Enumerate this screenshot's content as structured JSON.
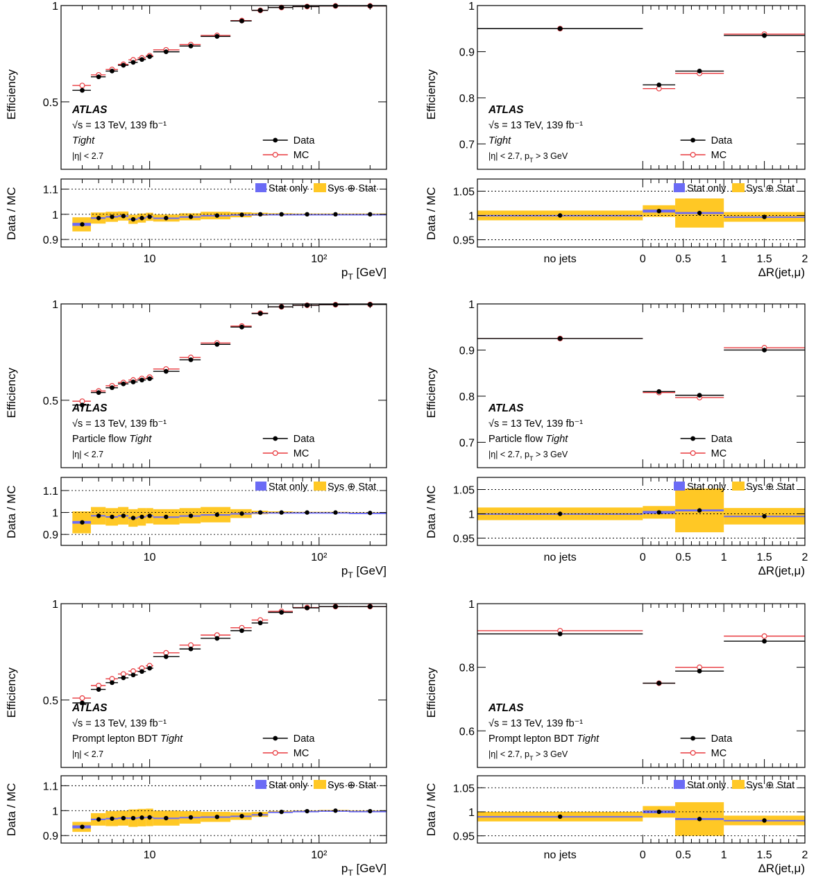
{
  "colors": {
    "data": "#000000",
    "mc": "#e8383d",
    "stat": "#6b6bf5",
    "sys": "#ffc825"
  },
  "labels": {
    "efficiency": "Efficiency",
    "ratio": "Data / MC",
    "pt_axis": "p_T [GeV]",
    "dr_axis": "ΔR(jet,μ)",
    "no_jets": "no jets",
    "atlas": "ATLAS",
    "energy": "√s = 13 TeV, 139 fb⁻¹",
    "legend_data": "Data",
    "legend_mc": "MC",
    "legend_stat": "Stat only",
    "legend_sys": "Sys ⊕ Stat"
  },
  "chart_data": [
    {
      "type": "line",
      "x_variable": "pT",
      "x_scale": "log",
      "xlim": [
        3,
        250
      ],
      "x_ticks": [
        "10",
        "10²"
      ],
      "wp_prefix": "",
      "wp_name": "Tight",
      "selection": "|η| < 2.7",
      "ylim": [
        0.15,
        1.0
      ],
      "y_ticks": [
        "0.5",
        "1"
      ],
      "ratio_ylim": [
        0.87,
        1.14
      ],
      "ratio_ticks": [
        "0.9",
        "1",
        "1.1"
      ],
      "bins": [
        [
          3.5,
          4.5
        ],
        [
          4.5,
          5.5
        ],
        [
          5.5,
          6.5
        ],
        [
          6.5,
          7.5
        ],
        [
          7.5,
          8.5
        ],
        [
          8.5,
          9.5
        ],
        [
          9.5,
          10.5
        ],
        [
          10.5,
          15
        ],
        [
          15,
          20
        ],
        [
          20,
          30
        ],
        [
          30,
          40
        ],
        [
          40,
          50
        ],
        [
          50,
          70
        ],
        [
          70,
          100
        ],
        [
          100,
          150
        ],
        [
          150,
          250
        ]
      ],
      "x": [
        4,
        5,
        6,
        7,
        8,
        9,
        10,
        12.5,
        17.5,
        25,
        35,
        45,
        60,
        85,
        125,
        200
      ],
      "data": [
        0.56,
        0.63,
        0.66,
        0.69,
        0.705,
        0.72,
        0.735,
        0.76,
        0.79,
        0.84,
        0.92,
        0.975,
        0.99,
        0.995,
        0.998,
        0.998
      ],
      "mc": [
        0.585,
        0.64,
        0.668,
        0.695,
        0.718,
        0.728,
        0.74,
        0.77,
        0.797,
        0.845,
        0.922,
        0.975,
        0.99,
        0.995,
        0.998,
        0.998
      ],
      "ratio": [
        0.96,
        0.985,
        0.99,
        0.993,
        0.98,
        0.985,
        0.99,
        0.985,
        0.99,
        0.995,
        0.998,
        1.0,
        1.0,
        1.0,
        1.0,
        1.0
      ],
      "stat_err": [
        0.006,
        0.003,
        0.003,
        0.003,
        0.003,
        0.003,
        0.003,
        0.002,
        0.002,
        0.002,
        0.002,
        0.001,
        0.001,
        0.001,
        0.001,
        0.001
      ],
      "sys_err": [
        0.028,
        0.022,
        0.02,
        0.018,
        0.018,
        0.018,
        0.016,
        0.014,
        0.014,
        0.015,
        0.01,
        0.006,
        0.004,
        0.003,
        0.003,
        0.003
      ]
    },
    {
      "type": "line",
      "x_variable": "dR",
      "x_ticks": [
        "no jets",
        "0",
        "0.5",
        "1",
        "1.5",
        "2"
      ],
      "wp_prefix": "",
      "wp_name": "Tight",
      "selection": "|η| < 2.7, p_T > 3 GeV",
      "ylim": [
        0.645,
        1.0
      ],
      "y_ticks": [
        "0.7",
        "0.8",
        "0.9",
        "1"
      ],
      "ratio_ylim": [
        0.935,
        1.075
      ],
      "ratio_ticks": [
        "0.95",
        "1",
        "1.05"
      ],
      "bins": [
        [
          -1,
          0
        ],
        [
          0,
          0.4
        ],
        [
          0.4,
          1.0
        ],
        [
          1.0,
          2.0
        ]
      ],
      "x": [
        -0.5,
        0.2,
        0.7,
        1.5
      ],
      "data": [
        0.95,
        0.828,
        0.858,
        0.935
      ],
      "mc": [
        0.95,
        0.82,
        0.853,
        0.938
      ],
      "ratio": [
        1.0,
        1.009,
        1.005,
        0.997
      ],
      "stat_err": [
        0.001,
        0.003,
        0.002,
        0.001
      ],
      "sys_err": [
        0.01,
        0.012,
        0.03,
        0.01
      ]
    },
    {
      "type": "line",
      "x_variable": "pT",
      "x_scale": "log",
      "xlim": [
        3,
        250
      ],
      "x_ticks": [
        "10",
        "10²"
      ],
      "wp_prefix": "Particle flow",
      "wp_name": "Tight",
      "selection": "|η| < 2.7",
      "ylim": [
        0.15,
        1.0
      ],
      "y_ticks": [
        "0.5",
        "1"
      ],
      "ratio_ylim": [
        0.85,
        1.16
      ],
      "ratio_ticks": [
        "0.9",
        "1",
        "1.1"
      ],
      "bins": [
        [
          3.5,
          4.5
        ],
        [
          4.5,
          5.5
        ],
        [
          5.5,
          6.5
        ],
        [
          6.5,
          7.5
        ],
        [
          7.5,
          8.5
        ],
        [
          8.5,
          9.5
        ],
        [
          9.5,
          10.5
        ],
        [
          10.5,
          15
        ],
        [
          15,
          20
        ],
        [
          20,
          30
        ],
        [
          30,
          40
        ],
        [
          40,
          50
        ],
        [
          50,
          70
        ],
        [
          70,
          100
        ],
        [
          100,
          150
        ],
        [
          150,
          250
        ]
      ],
      "x": [
        4,
        5,
        6,
        7,
        8,
        9,
        10,
        12.5,
        17.5,
        25,
        35,
        45,
        60,
        85,
        125,
        200
      ],
      "data": [
        0.475,
        0.54,
        0.565,
        0.585,
        0.595,
        0.605,
        0.612,
        0.65,
        0.71,
        0.79,
        0.88,
        0.95,
        0.985,
        0.993,
        0.996,
        0.997
      ],
      "mc": [
        0.495,
        0.548,
        0.575,
        0.592,
        0.605,
        0.613,
        0.62,
        0.662,
        0.722,
        0.797,
        0.885,
        0.952,
        0.985,
        0.993,
        0.996,
        0.997
      ],
      "ratio": [
        0.955,
        0.985,
        0.98,
        0.985,
        0.975,
        0.98,
        0.985,
        0.98,
        0.985,
        0.99,
        0.995,
        1.0,
        1.0,
        1.0,
        1.0,
        0.998
      ],
      "stat_err": [
        0.006,
        0.003,
        0.003,
        0.003,
        0.003,
        0.003,
        0.003,
        0.002,
        0.002,
        0.002,
        0.002,
        0.001,
        0.001,
        0.001,
        0.001,
        0.001
      ],
      "sys_err": [
        0.05,
        0.04,
        0.04,
        0.04,
        0.04,
        0.04,
        0.035,
        0.035,
        0.035,
        0.035,
        0.02,
        0.008,
        0.005,
        0.003,
        0.003,
        0.003
      ]
    },
    {
      "type": "line",
      "x_variable": "dR",
      "x_ticks": [
        "no jets",
        "0",
        "0.5",
        "1",
        "1.5",
        "2"
      ],
      "wp_prefix": "Particle flow",
      "wp_name": "Tight",
      "selection": "|η| < 2.7, p_T > 3 GeV",
      "ylim": [
        0.645,
        1.0
      ],
      "y_ticks": [
        "0.7",
        "0.8",
        "0.9",
        "1"
      ],
      "ratio_ylim": [
        0.935,
        1.075
      ],
      "ratio_ticks": [
        "0.95",
        "1",
        "1.05"
      ],
      "bins": [
        [
          -1,
          0
        ],
        [
          0,
          0.4
        ],
        [
          0.4,
          1.0
        ],
        [
          1.0,
          2.0
        ]
      ],
      "x": [
        -0.5,
        0.2,
        0.7,
        1.5
      ],
      "data": [
        0.925,
        0.81,
        0.802,
        0.9
      ],
      "mc": [
        0.925,
        0.808,
        0.797,
        0.905
      ],
      "ratio": [
        1.0,
        1.003,
        1.007,
        0.995
      ],
      "stat_err": [
        0.001,
        0.003,
        0.002,
        0.001
      ],
      "sys_err": [
        0.013,
        0.013,
        0.045,
        0.017
      ]
    },
    {
      "type": "line",
      "x_variable": "pT",
      "x_scale": "log",
      "xlim": [
        3,
        250
      ],
      "x_ticks": [
        "10",
        "10²"
      ],
      "wp_prefix": "Prompt lepton BDT",
      "wp_name": "Tight",
      "selection": "|η| < 2.7",
      "ylim": [
        0.15,
        1.0
      ],
      "y_ticks": [
        "0.5",
        "1"
      ],
      "ratio_ylim": [
        0.87,
        1.14
      ],
      "ratio_ticks": [
        "0.9",
        "1",
        "1.1"
      ],
      "bins": [
        [
          3.5,
          4.5
        ],
        [
          4.5,
          5.5
        ],
        [
          5.5,
          6.5
        ],
        [
          6.5,
          7.5
        ],
        [
          7.5,
          8.5
        ],
        [
          8.5,
          9.5
        ],
        [
          9.5,
          10.5
        ],
        [
          10.5,
          15
        ],
        [
          15,
          20
        ],
        [
          20,
          30
        ],
        [
          30,
          40
        ],
        [
          40,
          50
        ],
        [
          50,
          70
        ],
        [
          70,
          100
        ],
        [
          100,
          150
        ],
        [
          150,
          250
        ]
      ],
      "x": [
        4,
        5,
        6,
        7,
        8,
        9,
        10,
        12.5,
        17.5,
        25,
        35,
        45,
        60,
        85,
        125,
        200
      ],
      "data": [
        0.485,
        0.555,
        0.59,
        0.615,
        0.63,
        0.648,
        0.665,
        0.725,
        0.765,
        0.82,
        0.86,
        0.9,
        0.955,
        0.978,
        0.985,
        0.985
      ],
      "mc": [
        0.51,
        0.575,
        0.61,
        0.635,
        0.65,
        0.665,
        0.678,
        0.745,
        0.785,
        0.837,
        0.875,
        0.915,
        0.96,
        0.98,
        0.985,
        0.985
      ],
      "ratio": [
        0.935,
        0.965,
        0.968,
        0.97,
        0.97,
        0.972,
        0.973,
        0.97,
        0.973,
        0.975,
        0.978,
        0.985,
        0.995,
        0.998,
        1.0,
        0.998
      ],
      "stat_err": [
        0.006,
        0.003,
        0.003,
        0.003,
        0.003,
        0.003,
        0.003,
        0.002,
        0.002,
        0.002,
        0.002,
        0.001,
        0.001,
        0.001,
        0.001,
        0.001
      ],
      "sys_err": [
        0.02,
        0.025,
        0.03,
        0.03,
        0.035,
        0.035,
        0.035,
        0.03,
        0.025,
        0.02,
        0.015,
        0.01,
        0.004,
        0.003,
        0.003,
        0.003
      ]
    },
    {
      "type": "line",
      "x_variable": "dR",
      "x_ticks": [
        "no jets",
        "0",
        "0.5",
        "1",
        "1.5",
        "2"
      ],
      "wp_prefix": "Prompt lepton BDT",
      "wp_name": "Tight",
      "selection": "|η| < 2.7, p_T > 3 GeV",
      "ylim": [
        0.485,
        1.0
      ],
      "y_ticks": [
        "0.6",
        "0.8",
        "1"
      ],
      "ratio_ylim": [
        0.935,
        1.075
      ],
      "ratio_ticks": [
        "0.95",
        "1",
        "1.05"
      ],
      "bins": [
        [
          -1,
          0
        ],
        [
          0,
          0.4
        ],
        [
          0.4,
          1.0
        ],
        [
          1.0,
          2.0
        ]
      ],
      "x": [
        -0.5,
        0.2,
        0.7,
        1.5
      ],
      "data": [
        0.905,
        0.75,
        0.788,
        0.882
      ],
      "mc": [
        0.915,
        0.75,
        0.8,
        0.898
      ],
      "ratio": [
        0.99,
        1.0,
        0.985,
        0.982
      ],
      "stat_err": [
        0.001,
        0.003,
        0.002,
        0.001
      ],
      "sys_err": [
        0.01,
        0.012,
        0.035,
        0.01
      ]
    }
  ]
}
